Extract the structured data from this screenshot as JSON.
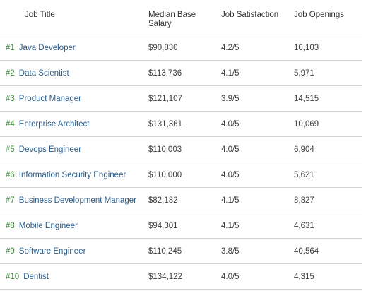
{
  "headers": {
    "job_title": "Job Title",
    "median_base_salary": "Median Base Salary",
    "job_satisfaction": "Job Satisfaction",
    "job_openings": "Job Openings"
  },
  "rows": [
    {
      "rank": "#1",
      "title": "Java Developer",
      "salary": "$90,830",
      "satisfaction": "4.2/5",
      "openings": "10,103"
    },
    {
      "rank": "#2",
      "title": "Data Scientist",
      "salary": "$113,736",
      "satisfaction": "4.1/5",
      "openings": "5,971"
    },
    {
      "rank": "#3",
      "title": "Product Manager",
      "salary": "$121,107",
      "satisfaction": "3.9/5",
      "openings": "14,515"
    },
    {
      "rank": "#4",
      "title": "Enterprise Architect",
      "salary": "$131,361",
      "satisfaction": "4.0/5",
      "openings": "10,069"
    },
    {
      "rank": "#5",
      "title": "Devops Engineer",
      "salary": "$110,003",
      "satisfaction": "4.0/5",
      "openings": "6,904"
    },
    {
      "rank": "#6",
      "title": "Information Security Engineer",
      "salary": "$110,000",
      "satisfaction": "4.0/5",
      "openings": "5,621"
    },
    {
      "rank": "#7",
      "title": "Business Development Manager",
      "salary": "$82,182",
      "satisfaction": "4.1/5",
      "openings": "8,827"
    },
    {
      "rank": "#8",
      "title": "Mobile Engineer",
      "salary": "$94,301",
      "satisfaction": "4.1/5",
      "openings": "4,631"
    },
    {
      "rank": "#9",
      "title": "Software Engineer",
      "salary": "$110,245",
      "satisfaction": "3.8/5",
      "openings": "40,564"
    },
    {
      "rank": "#10",
      "title": "Dentist",
      "salary": "$134,122",
      "satisfaction": "4.0/5",
      "openings": "4,315"
    }
  ],
  "colors": {
    "rank": "#3a8f3a",
    "link": "#2a5c8a",
    "text": "#3d3d3d",
    "rule": "#d6d6d6"
  }
}
